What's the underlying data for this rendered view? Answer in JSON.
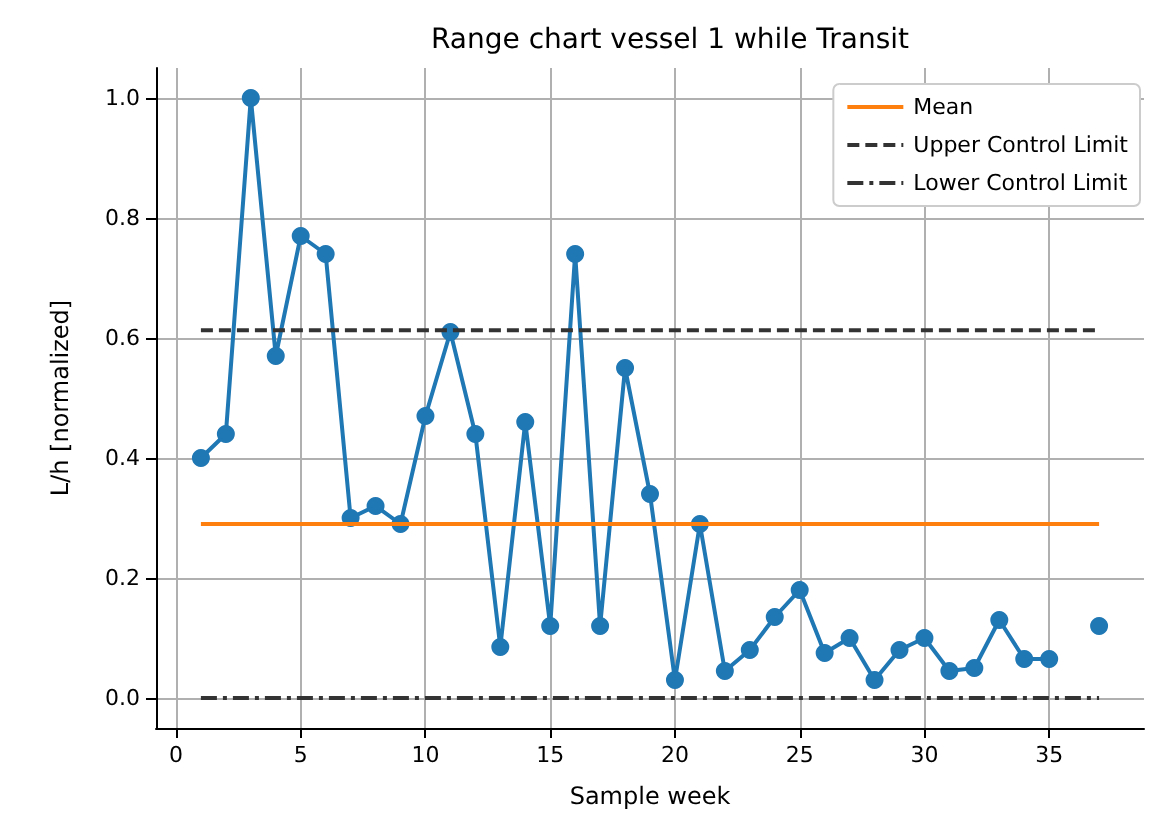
{
  "chart_data": {
    "type": "line",
    "title": "Range chart vessel 1 while Transit",
    "xlabel": "Sample week",
    "ylabel": "L/h [normalized]",
    "x": [
      1,
      2,
      3,
      4,
      5,
      6,
      7,
      8,
      9,
      10,
      11,
      12,
      13,
      14,
      15,
      16,
      17,
      18,
      19,
      20,
      21,
      22,
      23,
      24,
      25,
      26,
      27,
      28,
      29,
      30,
      31,
      32,
      33,
      34,
      35,
      36,
      37
    ],
    "series": [
      {
        "color": "#1f77b4",
        "marker": "circle",
        "values": [
          0.4,
          0.44,
          1.0,
          0.57,
          0.77,
          0.74,
          0.3,
          0.32,
          0.29,
          0.47,
          0.61,
          0.44,
          0.085,
          0.46,
          0.12,
          0.74,
          0.12,
          0.55,
          0.34,
          0.03,
          0.29,
          0.045,
          0.08,
          0.135,
          0.18,
          0.075,
          0.1,
          0.03,
          0.08,
          0.1,
          0.045,
          0.05,
          0.13,
          0.065,
          0.065,
          null,
          0.12
        ]
      },
      {
        "name": "Mean",
        "color": "#ff7f0e",
        "values": [
          0.29,
          0.29,
          0.29,
          0.29,
          0.29,
          0.29,
          0.29,
          0.29,
          0.29,
          0.29,
          0.29,
          0.29,
          0.29,
          0.29,
          0.29,
          0.29,
          0.29,
          0.29,
          0.29,
          0.29,
          0.29,
          0.29,
          0.29,
          0.29,
          0.29,
          0.29,
          0.29,
          0.29,
          0.29,
          0.29,
          0.29,
          0.29,
          0.29,
          0.29,
          0.29,
          0.29,
          0.29
        ],
        "marker": "none",
        "line_style": "solid"
      },
      {
        "name": "Upper Control Limit",
        "color": "#333333",
        "values": [
          0.613,
          0.613,
          0.613,
          0.613,
          0.613,
          0.613,
          0.613,
          0.613,
          0.613,
          0.613,
          0.613,
          0.613,
          0.613,
          0.613,
          0.613,
          0.613,
          0.613,
          0.613,
          0.613,
          0.613,
          0.613,
          0.613,
          0.613,
          0.613,
          0.613,
          0.613,
          0.613,
          0.613,
          0.613,
          0.613,
          0.613,
          0.613,
          0.613,
          0.613,
          0.613,
          0.613,
          0.613
        ],
        "marker": "none",
        "line_style": "dashed"
      },
      {
        "name": "Lower Control Limit",
        "color": "#333333",
        "values": [
          0,
          0,
          0,
          0,
          0,
          0,
          0,
          0,
          0,
          0,
          0,
          0,
          0,
          0,
          0,
          0,
          0,
          0,
          0,
          0,
          0,
          0,
          0,
          0,
          0,
          0,
          0,
          0,
          0,
          0,
          0,
          0,
          0,
          0,
          0,
          0,
          0
        ],
        "marker": "none",
        "line_style": "dashdot"
      }
    ],
    "xlim": [
      -0.8,
      38.8
    ],
    "xticks": [
      0,
      5,
      10,
      15,
      20,
      25,
      30,
      35
    ],
    "ylim": [
      -0.05,
      1.05
    ],
    "yticks": [
      {
        "value": 0,
        "label": "0.0"
      },
      {
        "value": 0.2,
        "label": "0.2"
      },
      {
        "value": 0.4,
        "label": "0.4"
      },
      {
        "value": 0.6,
        "label": "0.6"
      },
      {
        "value": 0.8,
        "label": "0.8"
      },
      {
        "value": 1.0,
        "label": "1.0"
      }
    ],
    "grid": true,
    "legend": "top right"
  }
}
